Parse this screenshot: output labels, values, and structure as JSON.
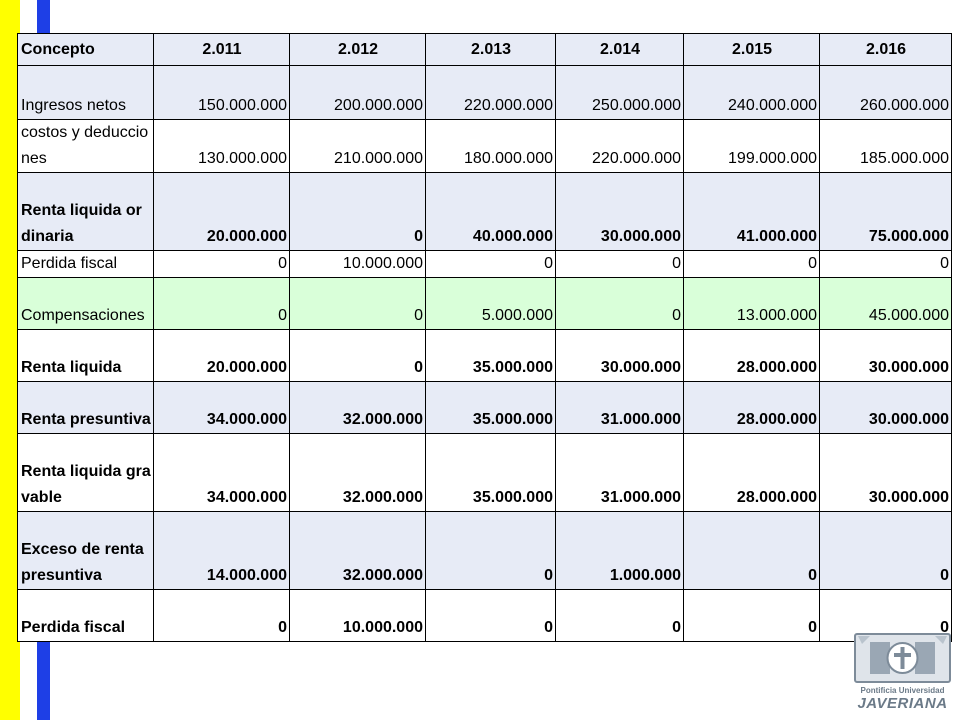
{
  "colors": {
    "left_yellow": "#ffff00",
    "left_blue": "#1e3fe6",
    "header_bg": "#e7ebf6",
    "green_row_bg": "#d9ffd9"
  },
  "table": {
    "headers": [
      "Concepto",
      "2.011",
      "2.012",
      "2.013",
      "2.014",
      "2.015",
      "2.016"
    ],
    "rows": [
      {
        "label": "Ingresos netos",
        "values": [
          "150.000.000",
          "200.000.000",
          "220.000.000",
          "250.000.000",
          "240.000.000",
          "260.000.000"
        ]
      },
      {
        "label": "costos y deducciones",
        "values": [
          "130.000.000",
          "210.000.000",
          "180.000.000",
          "220.000.000",
          "199.000.000",
          "185.000.000"
        ]
      },
      {
        "label": "Renta liquida ordinaria",
        "values": [
          "20.000.000",
          "0",
          "40.000.000",
          "30.000.000",
          "41.000.000",
          "75.000.000"
        ]
      },
      {
        "label": "Perdida fiscal",
        "values": [
          "0",
          "10.000.000",
          "0",
          "0",
          "0",
          "0"
        ]
      },
      {
        "label": "Compensaciones",
        "values": [
          "0",
          "0",
          "5.000.000",
          "0",
          "13.000.000",
          "45.000.000"
        ]
      },
      {
        "label": "Renta liquida",
        "values": [
          "20.000.000",
          "0",
          "35.000.000",
          "30.000.000",
          "28.000.000",
          "30.000.000"
        ]
      },
      {
        "label": "Renta presuntiva",
        "values": [
          "34.000.000",
          "32.000.000",
          "35.000.000",
          "31.000.000",
          "28.000.000",
          "30.000.000"
        ]
      },
      {
        "label": "Renta liquida gravable",
        "values": [
          "34.000.000",
          "32.000.000",
          "35.000.000",
          "31.000.000",
          "28.000.000",
          "30.000.000"
        ]
      },
      {
        "label": "Exceso de renta presuntiva",
        "values": [
          "14.000.000",
          "32.000.000",
          "0",
          "1.000.000",
          "0",
          "0"
        ]
      },
      {
        "label": "Perdida fiscal",
        "values": [
          "0",
          "10.000.000",
          "0",
          "0",
          "0",
          "0"
        ]
      }
    ]
  },
  "logo": {
    "icon": "university-crest-icon",
    "line1": "Pontificia Universidad",
    "line2": "JAVERIANA"
  }
}
